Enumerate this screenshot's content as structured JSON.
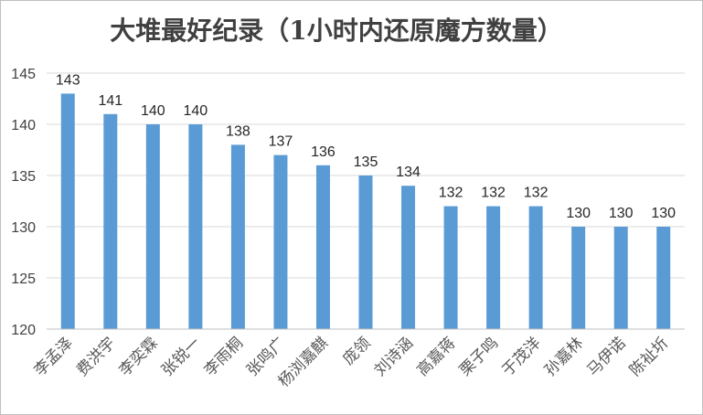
{
  "chart_data": {
    "type": "bar",
    "title": "大堆最好纪录（1小时内还原魔方数量）",
    "xlabel": "",
    "ylabel": "",
    "categories": [
      "李孟泽",
      "费洪宇",
      "李奕霖",
      "张锐一",
      "李雨桐",
      "张鸣广",
      "杨浏嘉麒",
      "庞领",
      "刘诗涵",
      "高嘉蒋",
      "栗子鸣",
      "于茂洋",
      "孙嘉林",
      "马伊诺",
      "陈祉圻"
    ],
    "values": [
      143,
      141,
      140,
      140,
      138,
      137,
      136,
      135,
      134,
      132,
      132,
      132,
      130,
      130,
      130
    ],
    "ylim": [
      120,
      145
    ],
    "yticks": [
      120,
      125,
      130,
      135,
      140,
      145
    ],
    "grid": true,
    "legend": "none",
    "colors": {
      "bar": "#5b9bd5",
      "grid": "#d9d9d9",
      "axis": "#bfbfbf"
    }
  }
}
